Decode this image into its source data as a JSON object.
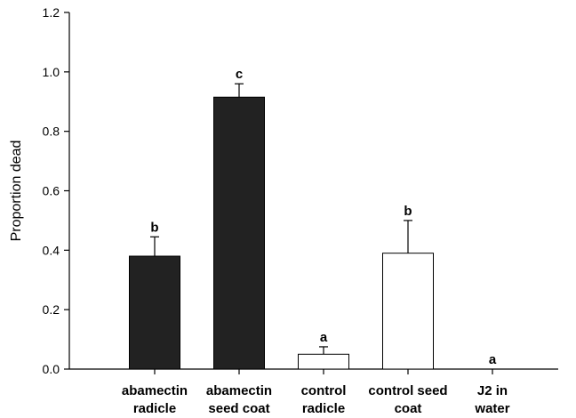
{
  "chart_data": {
    "type": "bar",
    "categories": [
      [
        "abamectin",
        "radicle"
      ],
      [
        "abamectin",
        "seed coat"
      ],
      [
        "control",
        "radicle"
      ],
      [
        "control seed",
        "coat"
      ],
      [
        "J2 in",
        "water"
      ]
    ],
    "values": [
      0.38,
      0.915,
      0.05,
      0.39,
      0.0
    ],
    "error_upper": [
      0.445,
      0.96,
      0.075,
      0.5,
      0.0
    ],
    "significance_labels": [
      "b",
      "c",
      "a",
      "b",
      "a"
    ],
    "bar_fill_colors": [
      "#222222",
      "#222222",
      "#ffffff",
      "#ffffff",
      "#ffffff"
    ],
    "title": "",
    "xlabel": "",
    "ylabel": "Proportion dead",
    "ylim": [
      0,
      1.2
    ],
    "yticks": [
      "0.0",
      "0.2",
      "0.4",
      "0.6",
      "0.8",
      "1.0",
      "1.2"
    ],
    "grid": false,
    "legend": "none"
  }
}
